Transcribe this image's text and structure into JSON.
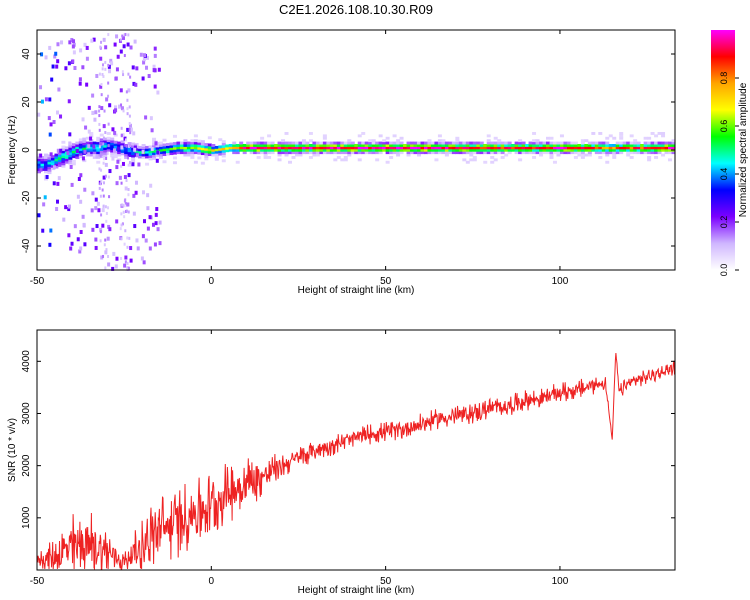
{
  "title": "C2E1.2026.108.10.30.R09",
  "chart_data": [
    {
      "type": "heatmap",
      "title": "",
      "xlabel": "Height of straight line (km)",
      "ylabel": "Frequency (Hz)",
      "xlim": [
        -50,
        133
      ],
      "ylim": [
        -50,
        50
      ],
      "x_ticks": [
        "-50",
        "0",
        "50",
        "100"
      ],
      "y_ticks": [
        "-40",
        "-20",
        "0",
        "20",
        "40"
      ],
      "grid": false,
      "colorbar": {
        "label": "Normalized spectral amplitude",
        "range": [
          0,
          1
        ],
        "ticks": [
          "0.0",
          "0.2",
          "0.4",
          "0.6",
          "0.8"
        ],
        "colors": [
          "#ffffff",
          "#cfb6ff",
          "#7b00ff",
          "#0000ff",
          "#00ffff",
          "#00ff00",
          "#ffff00",
          "#ffa500",
          "#ff0000",
          "#ff00ff"
        ]
      },
      "ridge": {
        "x": [
          -48,
          -45,
          -42,
          -39,
          -36,
          -33,
          -30,
          -27,
          -25,
          -20,
          -15,
          -10,
          -5,
          0,
          5,
          10,
          20,
          40,
          60,
          80,
          90,
          100,
          115,
          133
        ],
        "freq": [
          -6,
          -4,
          -2,
          0,
          1,
          1,
          2,
          1,
          0,
          -1,
          0,
          1,
          1,
          0,
          1,
          1,
          1,
          1,
          1,
          1,
          1,
          1,
          1,
          1
        ],
        "amplitude": [
          0.4,
          0.45,
          0.5,
          0.5,
          0.45,
          0.45,
          0.4,
          0.35,
          0.35,
          0.5,
          0.55,
          0.6,
          0.6,
          0.7,
          0.7,
          0.95,
          0.9,
          0.95,
          0.95,
          0.9,
          0.85,
          0.95,
          0.8,
          0.95
        ]
      }
    },
    {
      "type": "line",
      "title": "",
      "xlabel": "Height of straight line (km)",
      "ylabel": "SNR (10 * v/v)",
      "xlim": [
        -50,
        133
      ],
      "ylim": [
        0,
        4600
      ],
      "x_ticks": [
        "-50",
        "0",
        "50",
        "100"
      ],
      "y_ticks": [
        "1000",
        "2000",
        "3000",
        "4000"
      ],
      "grid": false,
      "color": "#ee2222",
      "x": [
        -50,
        -45,
        -40,
        -35,
        -30,
        -25,
        -22,
        -18,
        -15,
        -10,
        -5,
        0,
        5,
        10,
        15,
        20,
        25,
        30,
        35,
        40,
        45,
        50,
        55,
        60,
        65,
        70,
        75,
        80,
        85,
        90,
        95,
        100,
        105,
        110,
        113,
        115,
        116,
        117,
        120,
        125,
        130,
        133
      ],
      "y": [
        200,
        250,
        450,
        500,
        350,
        150,
        350,
        600,
        750,
        900,
        1100,
        1250,
        1500,
        1650,
        1800,
        2000,
        2150,
        2300,
        2400,
        2500,
        2600,
        2650,
        2700,
        2800,
        2900,
        2950,
        3000,
        3100,
        3150,
        3250,
        3300,
        3400,
        3450,
        3550,
        3600,
        2500,
        4200,
        3400,
        3600,
        3700,
        3800,
        3900
      ],
      "noise": [
        150,
        350,
        650,
        700,
        500,
        200,
        400,
        600,
        700,
        700,
        700,
        650,
        600,
        550,
        400,
        250,
        220,
        200,
        200,
        200,
        200,
        200,
        200,
        200,
        200,
        200,
        200,
        200,
        200,
        200,
        200,
        200,
        200,
        180,
        150,
        0,
        0,
        150,
        150,
        150,
        150,
        150
      ]
    }
  ]
}
